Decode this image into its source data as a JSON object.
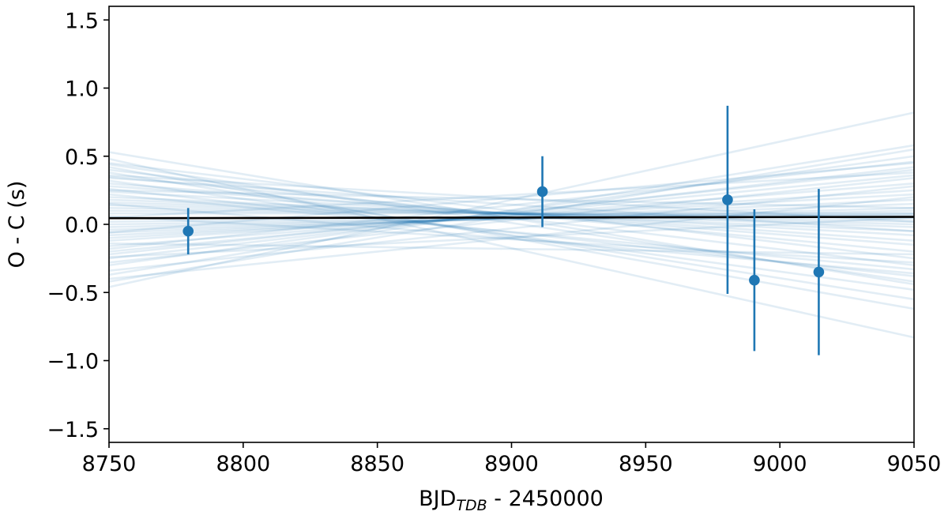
{
  "chart_data": {
    "type": "scatter",
    "title": "",
    "xlabel": {
      "main": "BJD",
      "subscript": "TDB",
      "suffix": " - 2450000"
    },
    "ylabel": "O - C (s)",
    "xlim": [
      8750,
      9050
    ],
    "ylim": [
      -1.6,
      1.6
    ],
    "x_ticks": [
      8750,
      8800,
      8850,
      8900,
      8950,
      9000,
      9050
    ],
    "y_ticks": [
      -1.5,
      -1.0,
      -0.5,
      0.0,
      0.5,
      1.0,
      1.5
    ],
    "y_tick_labels": [
      "−1.5",
      "−1.0",
      "−0.5",
      "0.0",
      "0.5",
      "1.0",
      "1.5"
    ],
    "grid": false,
    "legend": "none",
    "colors": {
      "points": "#1f77b4",
      "fit": "#000000",
      "samples": "#1f77b4"
    },
    "series": [
      {
        "kind": "errorbar",
        "points": [
          {
            "x": 8779.5,
            "y": -0.05,
            "yerr": 0.17
          },
          {
            "x": 8911.5,
            "y": 0.24,
            "yerr": 0.26
          },
          {
            "x": 8980.5,
            "y": 0.18,
            "yerr": 0.69
          },
          {
            "x": 8990.5,
            "y": -0.41,
            "yerr": 0.52
          },
          {
            "x": 9014.5,
            "y": -0.35,
            "yerr": 0.61
          }
        ]
      },
      {
        "kind": "fit-line",
        "start": {
          "x": 8750,
          "y": 0.045
        },
        "end": {
          "x": 9050,
          "y": 0.055
        }
      },
      {
        "kind": "posterior-samples",
        "lines": [
          [
            0.53,
            -0.44
          ],
          [
            -0.46,
            0.82
          ],
          [
            0.45,
            -0.25
          ],
          [
            -0.37,
            0.58
          ],
          [
            0.4,
            -0.3
          ],
          [
            -0.3,
            0.5
          ],
          [
            0.35,
            -0.2
          ],
          [
            -0.25,
            0.42
          ],
          [
            0.3,
            -0.15
          ],
          [
            -0.2,
            0.36
          ],
          [
            0.28,
            -0.12
          ],
          [
            -0.16,
            0.3
          ],
          [
            0.24,
            -0.08
          ],
          [
            -0.12,
            0.25
          ],
          [
            0.2,
            -0.05
          ],
          [
            -0.1,
            0.22
          ],
          [
            0.18,
            -0.02
          ],
          [
            -0.08,
            0.18
          ],
          [
            0.16,
            0.0
          ],
          [
            -0.06,
            0.15
          ],
          [
            0.14,
            0.02
          ],
          [
            -0.04,
            0.12
          ],
          [
            0.12,
            0.04
          ],
          [
            -0.02,
            0.1
          ],
          [
            0.1,
            0.06
          ],
          [
            0.0,
            0.08
          ],
          [
            0.08,
            0.08
          ],
          [
            0.02,
            0.07
          ],
          [
            0.22,
            -0.33
          ],
          [
            -0.18,
            0.46
          ],
          [
            0.26,
            -0.38
          ],
          [
            -0.22,
            0.4
          ],
          [
            0.32,
            -0.48
          ],
          [
            -0.28,
            0.34
          ],
          [
            0.38,
            -0.55
          ],
          [
            -0.34,
            0.28
          ],
          [
            0.42,
            -0.62
          ],
          [
            -0.4,
            0.2
          ],
          [
            0.48,
            -0.83
          ],
          [
            -0.42,
            0.55
          ],
          [
            0.36,
            0.02
          ],
          [
            -0.14,
            -0.22
          ],
          [
            0.05,
            0.38
          ],
          [
            0.15,
            -0.36
          ],
          [
            -0.06,
            0.45
          ],
          [
            0.25,
            0.12
          ],
          [
            -0.24,
            0.05
          ],
          [
            0.34,
            -0.05
          ],
          [
            0.06,
            -0.28
          ],
          [
            0.44,
            -0.42
          ]
        ]
      }
    ]
  }
}
